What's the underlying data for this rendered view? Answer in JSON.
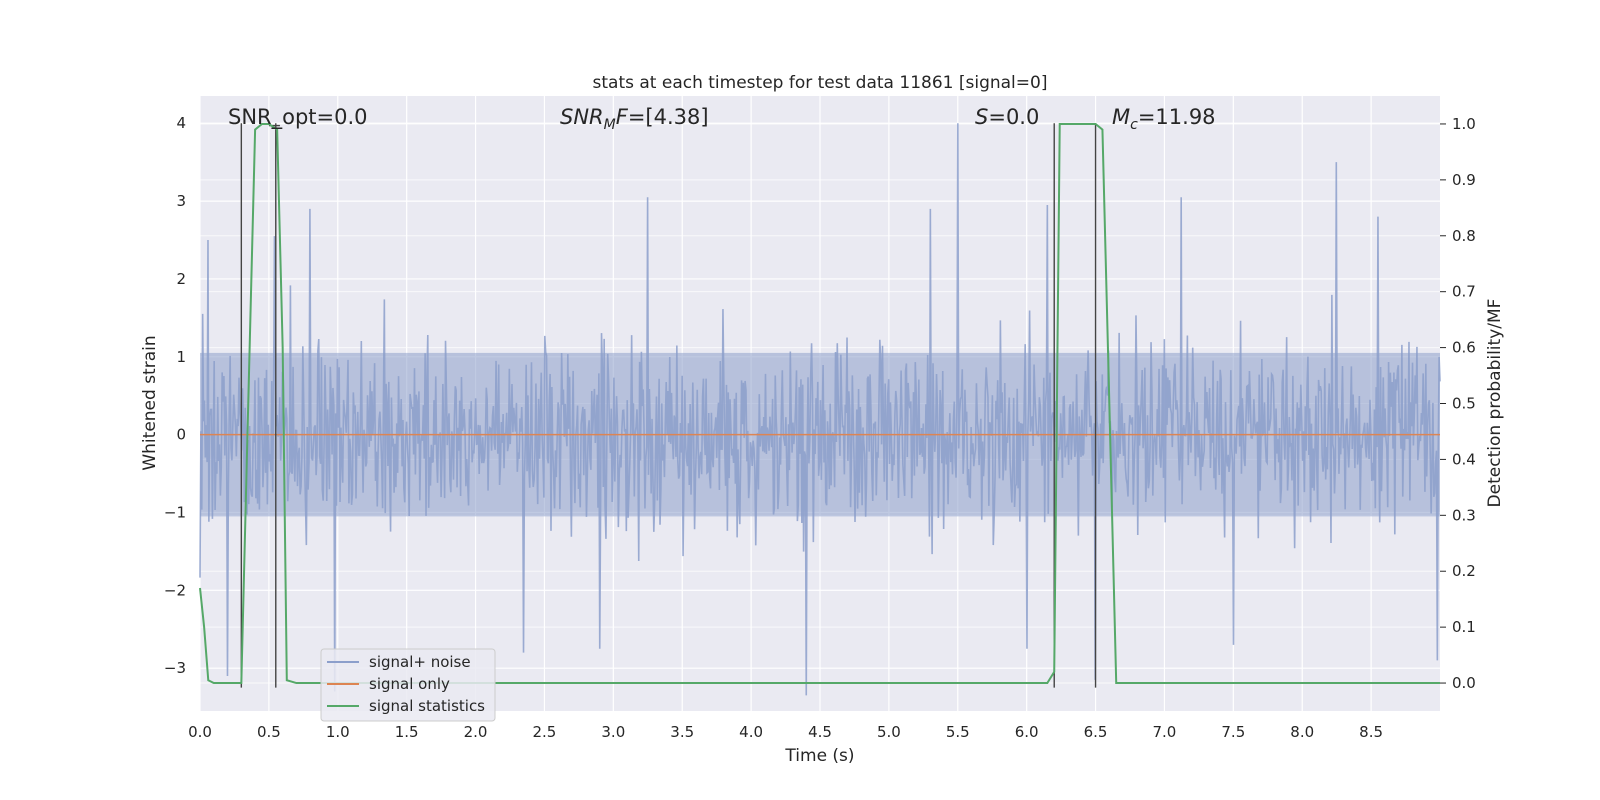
{
  "chart_data": {
    "type": "line",
    "title": "stats at each timestep for test data 11861 [signal=0]",
    "xlabel": "Time (s)",
    "ylabel": "Whitened strain",
    "y2label": "Detection probability/MF",
    "xlim": [
      0.0,
      9.0
    ],
    "ylim": [
      -3.55,
      4.35
    ],
    "y2lim": [
      -0.05,
      1.05
    ],
    "xticks": [
      0.0,
      0.5,
      1.0,
      1.5,
      2.0,
      2.5,
      3.0,
      3.5,
      4.0,
      4.5,
      5.0,
      5.5,
      6.0,
      6.5,
      7.0,
      7.5,
      8.0,
      8.5
    ],
    "xtick_labels": [
      "0.0",
      "0.5",
      "1.0",
      "1.5",
      "2.0",
      "2.5",
      "3.0",
      "3.5",
      "4.0",
      "4.5",
      "5.0",
      "5.5",
      "6.0",
      "6.5",
      "7.0",
      "7.5",
      "8.0",
      "8.5"
    ],
    "yticks": [
      -3,
      -2,
      -1,
      0,
      1,
      2,
      3,
      4
    ],
    "ytick_labels": [
      "−3",
      "−2",
      "−1",
      "0",
      "1",
      "2",
      "3",
      "4"
    ],
    "y2ticks": [
      0.0,
      0.1,
      0.2,
      0.3,
      0.4,
      0.5,
      0.6,
      0.7,
      0.8,
      0.9,
      1.0
    ],
    "y2tick_labels": [
      "0.0",
      "0.1",
      "0.2",
      "0.3",
      "0.4",
      "0.5",
      "0.6",
      "0.7",
      "0.8",
      "0.9",
      "1.0"
    ],
    "grid": true,
    "legend_position": "lower-left",
    "annotations": {
      "snr_opt": "SNR_opt=0.0",
      "snr_mf_sym": "SNR",
      "snr_mf_sub": "M",
      "snr_mf_rest": "F=[4.38]",
      "s_sym": "S",
      "s_rest": "=0.0",
      "mc_sym": "M",
      "mc_sub": "c",
      "mc_rest": "=11.98"
    },
    "series": [
      {
        "name": "signal+ noise",
        "color": "#8c9fcb",
        "description": "whitened noise, roughly +/-1 sigma band with spikes",
        "peaks": [
          {
            "x": 0.06,
            "y": 2.5
          },
          {
            "x": 0.54,
            "y": 2.55
          },
          {
            "x": 0.8,
            "y": 2.9
          },
          {
            "x": 3.25,
            "y": 3.05
          },
          {
            "x": 5.5,
            "y": 4.0
          },
          {
            "x": 5.3,
            "y": 2.9
          },
          {
            "x": 6.15,
            "y": 2.95
          },
          {
            "x": 7.12,
            "y": 3.05
          },
          {
            "x": 8.25,
            "y": 3.5
          },
          {
            "x": 8.55,
            "y": 2.8
          }
        ],
        "troughs": [
          {
            "x": 0.2,
            "y": -3.1
          },
          {
            "x": 0.98,
            "y": -3.3
          },
          {
            "x": 2.35,
            "y": -2.8
          },
          {
            "x": 2.9,
            "y": -2.75
          },
          {
            "x": 4.4,
            "y": -3.35
          },
          {
            "x": 6.0,
            "y": -2.75
          },
          {
            "x": 6.5,
            "y": -3.15
          },
          {
            "x": 7.5,
            "y": -2.7
          },
          {
            "x": 8.98,
            "y": -2.9
          }
        ]
      },
      {
        "name": "signal only",
        "color": "#dd8452",
        "x": [
          0.0,
          9.0
        ],
        "y": [
          0.0,
          0.0
        ]
      },
      {
        "name": "signal statistics",
        "color": "#55a868",
        "axis": "right",
        "x": [
          0.0,
          0.03,
          0.06,
          0.1,
          0.2,
          0.3,
          0.34,
          0.4,
          0.45,
          0.5,
          0.56,
          0.6,
          0.63,
          0.7,
          0.8,
          1.0,
          2.0,
          3.0,
          4.0,
          5.0,
          5.5,
          6.0,
          6.15,
          6.2,
          6.24,
          6.3,
          6.4,
          6.5,
          6.55,
          6.6,
          6.65,
          7.0,
          8.0,
          9.0
        ],
        "y": [
          0.17,
          0.1,
          0.005,
          0.0,
          0.0,
          0.0,
          0.4,
          0.99,
          1.0,
          1.0,
          0.99,
          0.6,
          0.005,
          0.0,
          0.0,
          0.0,
          0.0,
          0.0,
          0.0,
          0.0,
          0.0,
          0.0,
          0.0,
          0.02,
          1.0,
          1.0,
          1.0,
          1.0,
          0.99,
          0.5,
          0.0,
          0.0,
          0.0,
          0.0
        ]
      }
    ],
    "vertical_lines": [
      {
        "x": 0.3,
        "y_top": 4.0,
        "y_bottom": -3.25
      },
      {
        "x": 0.55,
        "y_top": 4.0,
        "y_bottom": -3.25
      },
      {
        "x": 6.2,
        "y_top": 4.0,
        "y_bottom": -3.25
      },
      {
        "x": 6.5,
        "y_top": 4.0,
        "y_bottom": -3.25
      }
    ]
  }
}
